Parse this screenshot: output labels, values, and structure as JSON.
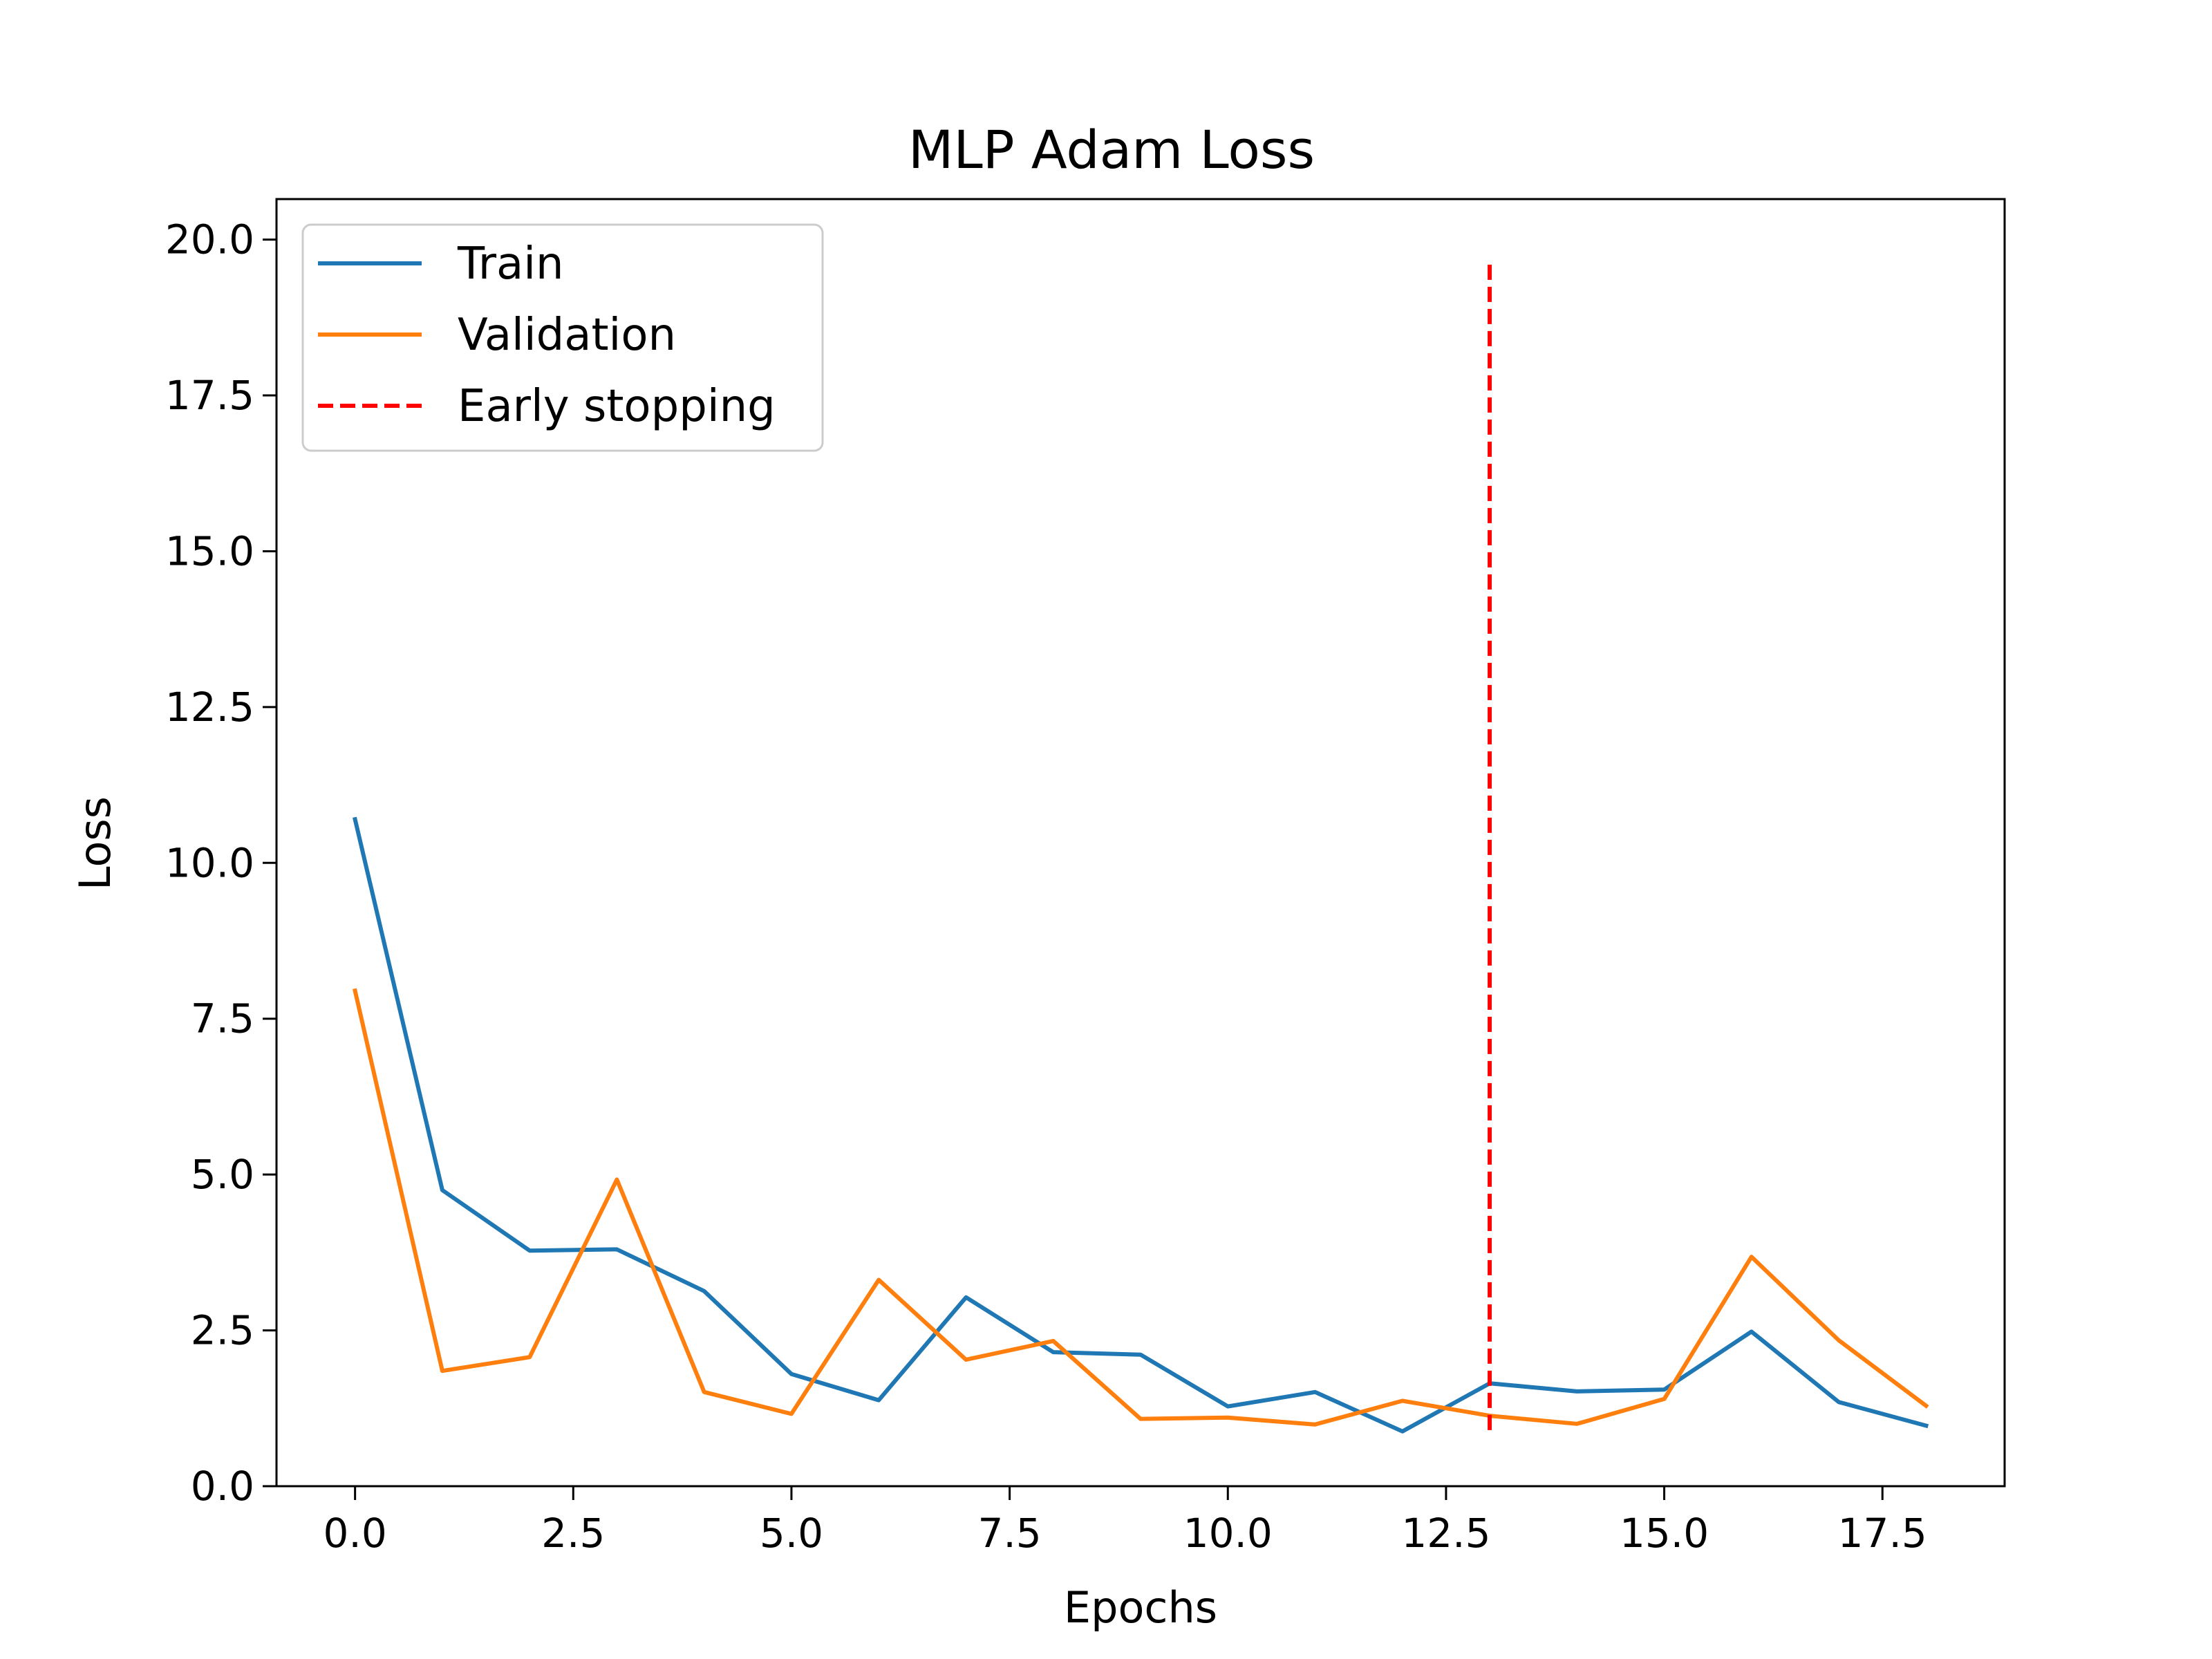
{
  "chart_data": {
    "type": "line",
    "title": "MLP Adam Loss",
    "xlabel": "Epochs",
    "ylabel": "Loss",
    "xlim": [
      -0.9,
      18.9
    ],
    "ylim": [
      0,
      20.65
    ],
    "xticks": [
      0.0,
      2.5,
      5.0,
      7.5,
      10.0,
      12.5,
      15.0,
      17.5
    ],
    "xtick_labels": [
      "0.0",
      "2.5",
      "5.0",
      "7.5",
      "10.0",
      "12.5",
      "15.0",
      "17.5"
    ],
    "yticks": [
      0.0,
      2.5,
      5.0,
      7.5,
      10.0,
      12.5,
      15.0,
      17.5,
      20.0
    ],
    "ytick_labels": [
      "0.0",
      "2.5",
      "5.0",
      "7.5",
      "10.0",
      "12.5",
      "15.0",
      "17.5",
      "20.0"
    ],
    "grid": false,
    "legend_position": "top-left",
    "x": [
      0,
      1,
      2,
      3,
      4,
      5,
      6,
      7,
      8,
      9,
      10,
      11,
      12,
      13,
      14,
      15,
      16,
      17,
      18
    ],
    "series": [
      {
        "name": "Train",
        "color": "#1f77b4",
        "values": [
          10.7,
          4.75,
          3.78,
          3.8,
          3.13,
          1.8,
          1.38,
          3.03,
          2.15,
          2.11,
          1.28,
          1.51,
          0.88,
          1.65,
          1.52,
          1.55,
          2.48,
          1.35,
          0.97
        ]
      },
      {
        "name": "Validation",
        "color": "#ff7f0e",
        "values": [
          7.95,
          1.85,
          2.07,
          4.92,
          1.51,
          1.16,
          3.31,
          2.03,
          2.33,
          1.08,
          1.1,
          0.99,
          1.37,
          1.13,
          1.0,
          1.4,
          3.68,
          2.34,
          1.29
        ]
      }
    ],
    "vline": {
      "name": "Early stopping",
      "color": "#ff0000",
      "x": 13,
      "ymin": 0.9,
      "ymax": 19.7,
      "style": "dashed"
    }
  }
}
